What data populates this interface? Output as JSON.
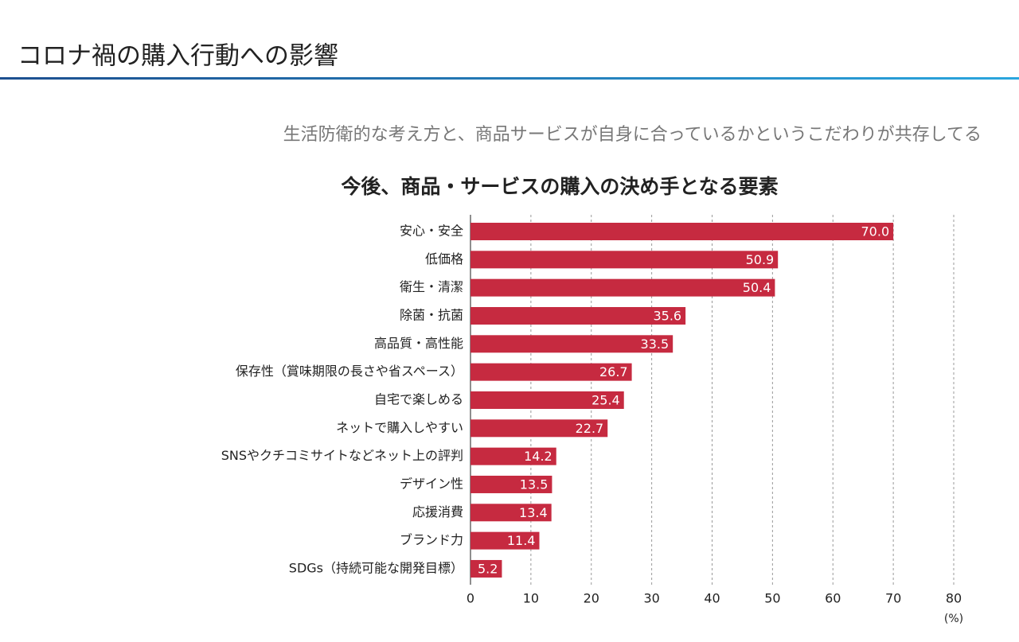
{
  "slide": {
    "title": "コロナ禍の購入行動への影響",
    "subtitle": "生活防衛的な考え方と、商品サービスが自身に合っているかというこだわりが共存してる"
  },
  "chart_data": {
    "type": "hbar",
    "title": "今後、商品・サービスの購入の決め手となる要素",
    "categories": [
      "安心・安全",
      "低価格",
      "衛生・清潔",
      "除菌・抗菌",
      "高品質・高性能",
      "保存性（賞味期限の長さや省スペース）",
      "自宅で楽しめる",
      "ネットで購入しやすい",
      "SNSやクチコミサイトなどネット上の評判",
      "デザイン性",
      "応援消費",
      "ブランド力",
      "SDGs（持続可能な開発目標）"
    ],
    "values": [
      70.0,
      50.9,
      50.4,
      35.6,
      33.5,
      26.7,
      25.4,
      22.7,
      14.2,
      13.5,
      13.4,
      11.4,
      5.2
    ],
    "value_labels": [
      "70.0",
      "50.9",
      "50.4",
      "35.6",
      "33.5",
      "26.7",
      "25.4",
      "22.7",
      "14.2",
      "13.5",
      "13.4",
      "11.4",
      "5.2"
    ],
    "color": "#c62a40",
    "xlim": [
      0,
      80
    ],
    "xticks": [
      0,
      10,
      20,
      30,
      40,
      50,
      60,
      70,
      80
    ],
    "xlabel": "(%)",
    "grid": true
  }
}
